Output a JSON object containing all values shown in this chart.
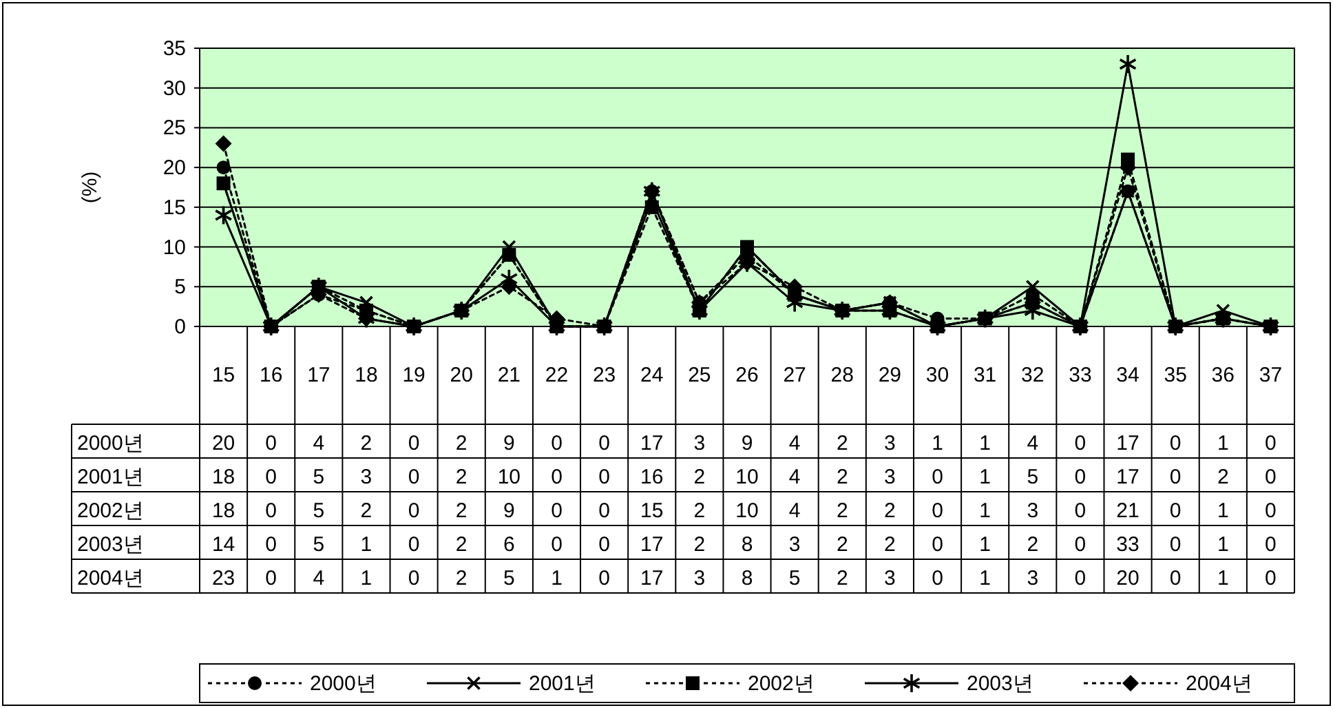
{
  "chart_data": {
    "type": "line",
    "ylabel": "(%)",
    "categories": [
      "15",
      "16",
      "17",
      "18",
      "19",
      "20",
      "21",
      "22",
      "23",
      "24",
      "25",
      "26",
      "27",
      "28",
      "29",
      "30",
      "31",
      "32",
      "33",
      "34",
      "35",
      "36",
      "37"
    ],
    "ylim": [
      0,
      35
    ],
    "yticks": [
      0,
      5,
      10,
      15,
      20,
      25,
      30,
      35
    ],
    "grid": "y",
    "legend": "bottom",
    "data_labels": true,
    "series": [
      {
        "name": "2000년",
        "color": "#000000",
        "marker": "circle",
        "line_style": "dotted",
        "values": [
          20,
          0,
          4,
          2,
          0,
          2,
          9,
          0,
          0,
          17,
          3,
          9,
          4,
          2,
          3,
          1,
          1,
          4,
          0,
          17,
          0,
          1,
          0
        ]
      },
      {
        "name": "2001년",
        "color": "#000000",
        "marker": "cross",
        "line_style": "solid",
        "values": [
          18,
          0,
          5,
          3,
          0,
          2,
          10,
          0,
          0,
          16,
          2,
          10,
          4,
          2,
          3,
          0,
          1,
          5,
          0,
          17,
          0,
          2,
          0
        ]
      },
      {
        "name": "2002년",
        "color": "#000000",
        "marker": "square",
        "line_style": "dotted",
        "values": [
          18,
          0,
          5,
          2,
          0,
          2,
          9,
          0,
          0,
          15,
          2,
          10,
          4,
          2,
          2,
          0,
          1,
          3,
          0,
          21,
          0,
          1,
          0
        ]
      },
      {
        "name": "2003년",
        "color": "#000000",
        "marker": "star",
        "line_style": "solid",
        "values": [
          14,
          0,
          5,
          1,
          0,
          2,
          6,
          0,
          0,
          17,
          2,
          8,
          3,
          2,
          2,
          0,
          1,
          2,
          0,
          33,
          0,
          1,
          0
        ]
      },
      {
        "name": "2004년",
        "color": "#000000",
        "marker": "diamond",
        "line_style": "dotted",
        "values": [
          23,
          0,
          4,
          1,
          0,
          2,
          5,
          1,
          0,
          17,
          3,
          8,
          5,
          2,
          3,
          0,
          1,
          3,
          0,
          20,
          0,
          1,
          0
        ]
      }
    ]
  }
}
